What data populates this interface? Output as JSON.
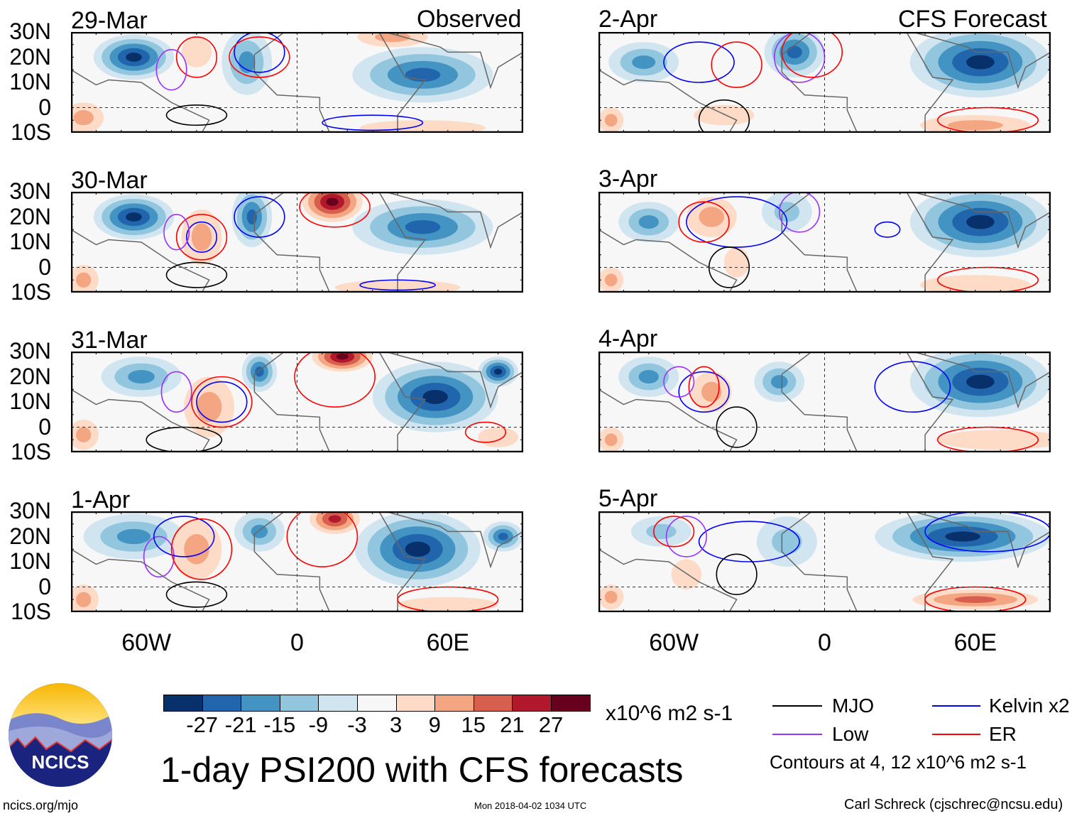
{
  "header": {
    "left_label": "Observed",
    "right_label": "CFS Forecast"
  },
  "axes": {
    "lat_labels": [
      "30N",
      "20N",
      "10N",
      "0",
      "10S"
    ],
    "lon_labels": [
      "60W",
      "0",
      "60E"
    ]
  },
  "colorbar": {
    "colors": [
      "#08306b",
      "#2166ac",
      "#4393c3",
      "#92c5de",
      "#d1e5f0",
      "#f7f7f7",
      "#fddbc7",
      "#f4a582",
      "#d6604d",
      "#b2182b",
      "#67001f"
    ],
    "ticks": [
      "-27",
      "-21",
      "-15",
      "-9",
      "-3",
      "3",
      "9",
      "15",
      "21",
      "27"
    ],
    "units": "x10^6 m2 s-1"
  },
  "legend": {
    "items": [
      {
        "label": "MJO",
        "color": "#000000"
      },
      {
        "label": "Kelvin x2",
        "color": "#0000ff"
      },
      {
        "label": "Low",
        "color": "#9933ff"
      },
      {
        "label": "ER",
        "color": "#ff0000"
      }
    ],
    "note": "Contours at 4, 12 x10^6 m2 s-1"
  },
  "title": "1-day PSI200 with CFS forecasts",
  "footer": {
    "url": "ncics.org/mjo",
    "timestamp": "Mon 2018-04-02 1034 UTC",
    "credit": "Carl Schreck (cjschrec@ncsu.edu)",
    "logo_text": "NCICS"
  },
  "chart_data": {
    "type": "heatmap",
    "lon_range": [
      -90,
      90
    ],
    "lat_range": [
      -10,
      30
    ],
    "panels": [
      {
        "date": "29-Mar",
        "blobs": [
          [
            -65,
            20,
            16,
            9,
            -27
          ],
          [
            -20,
            18,
            10,
            13,
            -15
          ],
          [
            50,
            13,
            28,
            11,
            -21
          ],
          [
            38,
            28,
            14,
            4,
            9
          ],
          [
            -85,
            -4,
            8,
            6,
            9
          ],
          [
            -40,
            22,
            6,
            6,
            3
          ],
          [
            50,
            -8,
            25,
            3,
            3
          ]
        ],
        "contours": [
          [
            "er",
            -40,
            20,
            8,
            8
          ],
          [
            "low",
            -50,
            15,
            6,
            8
          ],
          [
            "kelvin",
            -15,
            22,
            10,
            8
          ],
          [
            "mjo",
            -40,
            -3,
            12,
            4
          ],
          [
            "er",
            -15,
            20,
            12,
            8
          ],
          [
            "kelvin",
            30,
            -6,
            20,
            3
          ]
        ]
      },
      {
        "date": "30-Mar",
        "blobs": [
          [
            -65,
            20,
            16,
            9,
            -27
          ],
          [
            -18,
            20,
            8,
            12,
            -21
          ],
          [
            14,
            26,
            12,
            8,
            27
          ],
          [
            50,
            16,
            28,
            11,
            -21
          ],
          [
            -38,
            12,
            8,
            11,
            9
          ],
          [
            -85,
            -5,
            6,
            6,
            9
          ],
          [
            40,
            -8,
            25,
            3,
            3
          ]
        ],
        "contours": [
          [
            "er",
            -38,
            12,
            10,
            9
          ],
          [
            "kelvin",
            -38,
            12,
            6,
            6
          ],
          [
            "low",
            -48,
            14,
            5,
            7
          ],
          [
            "kelvin",
            -15,
            20,
            10,
            8
          ],
          [
            "er",
            15,
            24,
            14,
            8
          ],
          [
            "mjo",
            -40,
            -3,
            12,
            5
          ],
          [
            "kelvin",
            40,
            -7,
            15,
            2
          ]
        ]
      },
      {
        "date": "31-Mar",
        "blobs": [
          [
            -62,
            20,
            16,
            8,
            -15
          ],
          [
            -15,
            22,
            7,
            8,
            -21
          ],
          [
            18,
            28,
            12,
            6,
            27
          ],
          [
            55,
            12,
            25,
            14,
            -27
          ],
          [
            80,
            22,
            8,
            6,
            -27
          ],
          [
            -35,
            8,
            10,
            12,
            9
          ],
          [
            -85,
            -3,
            6,
            6,
            9
          ],
          [
            80,
            -4,
            8,
            4,
            3
          ]
        ],
        "contours": [
          [
            "low",
            -48,
            14,
            6,
            8
          ],
          [
            "kelvin",
            -30,
            10,
            10,
            8
          ],
          [
            "er",
            -30,
            10,
            12,
            10
          ],
          [
            "er",
            15,
            20,
            16,
            12
          ],
          [
            "mjo",
            -45,
            -5,
            15,
            5
          ],
          [
            "er",
            75,
            -2,
            8,
            4
          ]
        ]
      },
      {
        "date": "1-Apr",
        "blobs": [
          [
            -65,
            20,
            20,
            9,
            -15
          ],
          [
            -15,
            22,
            10,
            8,
            -15
          ],
          [
            15,
            27,
            10,
            6,
            21
          ],
          [
            48,
            15,
            25,
            15,
            -27
          ],
          [
            82,
            20,
            8,
            6,
            -21
          ],
          [
            -40,
            15,
            10,
            12,
            9
          ],
          [
            -85,
            -5,
            6,
            6,
            9
          ],
          [
            60,
            -7,
            20,
            3,
            3
          ]
        ],
        "contours": [
          [
            "low",
            -55,
            12,
            6,
            8
          ],
          [
            "kelvin",
            -45,
            20,
            12,
            8
          ],
          [
            "er",
            -38,
            15,
            12,
            12
          ],
          [
            "er",
            10,
            20,
            14,
            12
          ],
          [
            "mjo",
            -40,
            -3,
            12,
            5
          ],
          [
            "er",
            60,
            -5,
            20,
            5
          ]
        ]
      },
      {
        "date": "2-Apr",
        "blobs": [
          [
            -72,
            18,
            14,
            8,
            -15
          ],
          [
            -12,
            22,
            12,
            10,
            -21
          ],
          [
            62,
            18,
            28,
            14,
            -27
          ],
          [
            -40,
            -3,
            12,
            4,
            3
          ],
          [
            60,
            -7,
            22,
            4,
            9
          ],
          [
            -85,
            -5,
            5,
            5,
            9
          ]
        ],
        "contours": [
          [
            "kelvin",
            -50,
            18,
            14,
            8
          ],
          [
            "er",
            -35,
            17,
            10,
            9
          ],
          [
            "low",
            -10,
            20,
            10,
            10
          ],
          [
            "er",
            -5,
            22,
            12,
            10
          ],
          [
            "mjo",
            -40,
            -5,
            10,
            8
          ],
          [
            "er",
            65,
            -5,
            20,
            5
          ]
        ]
      },
      {
        "date": "3-Apr",
        "blobs": [
          [
            -70,
            18,
            12,
            8,
            -15
          ],
          [
            -15,
            22,
            10,
            8,
            -9
          ],
          [
            62,
            18,
            28,
            14,
            -27
          ],
          [
            -45,
            20,
            10,
            8,
            9
          ],
          [
            -35,
            2,
            5,
            6,
            3
          ],
          [
            60,
            -7,
            22,
            4,
            3
          ],
          [
            -85,
            -5,
            5,
            5,
            9
          ]
        ],
        "contours": [
          [
            "kelvin",
            -35,
            18,
            20,
            10
          ],
          [
            "er",
            -48,
            18,
            10,
            8
          ],
          [
            "low",
            -10,
            22,
            8,
            8
          ],
          [
            "mjo",
            -38,
            0,
            8,
            8
          ],
          [
            "er",
            65,
            -5,
            20,
            5
          ],
          [
            "kelvin",
            25,
            15,
            5,
            3
          ]
        ]
      },
      {
        "date": "4-Apr",
        "blobs": [
          [
            -70,
            20,
            12,
            8,
            -15
          ],
          [
            -18,
            18,
            10,
            8,
            -15
          ],
          [
            62,
            18,
            28,
            14,
            -27
          ],
          [
            -45,
            14,
            8,
            8,
            9
          ],
          [
            70,
            -5,
            25,
            4,
            3
          ],
          [
            -85,
            -5,
            5,
            5,
            9
          ]
        ],
        "contours": [
          [
            "kelvin",
            -48,
            14,
            10,
            8
          ],
          [
            "er",
            -48,
            16,
            6,
            8
          ],
          [
            "low",
            -58,
            18,
            6,
            6
          ],
          [
            "mjo",
            -35,
            0,
            8,
            8
          ],
          [
            "kelvin",
            35,
            16,
            15,
            10
          ],
          [
            "er",
            65,
            -5,
            20,
            5
          ]
        ]
      },
      {
        "date": "5-Apr",
        "blobs": [
          [
            -65,
            22,
            12,
            6,
            -9
          ],
          [
            -15,
            18,
            12,
            10,
            -9
          ],
          [
            55,
            20,
            35,
            10,
            -27
          ],
          [
            -55,
            5,
            6,
            6,
            3
          ],
          [
            60,
            -5,
            25,
            4,
            15
          ],
          [
            -85,
            -4,
            5,
            5,
            9
          ]
        ],
        "contours": [
          [
            "kelvin",
            -30,
            18,
            20,
            8
          ],
          [
            "low",
            -55,
            20,
            8,
            8
          ],
          [
            "er",
            -60,
            22,
            8,
            6
          ],
          [
            "mjo",
            -35,
            5,
            8,
            8
          ],
          [
            "kelvin",
            65,
            22,
            25,
            8
          ],
          [
            "er",
            60,
            -5,
            20,
            5
          ]
        ]
      }
    ]
  }
}
